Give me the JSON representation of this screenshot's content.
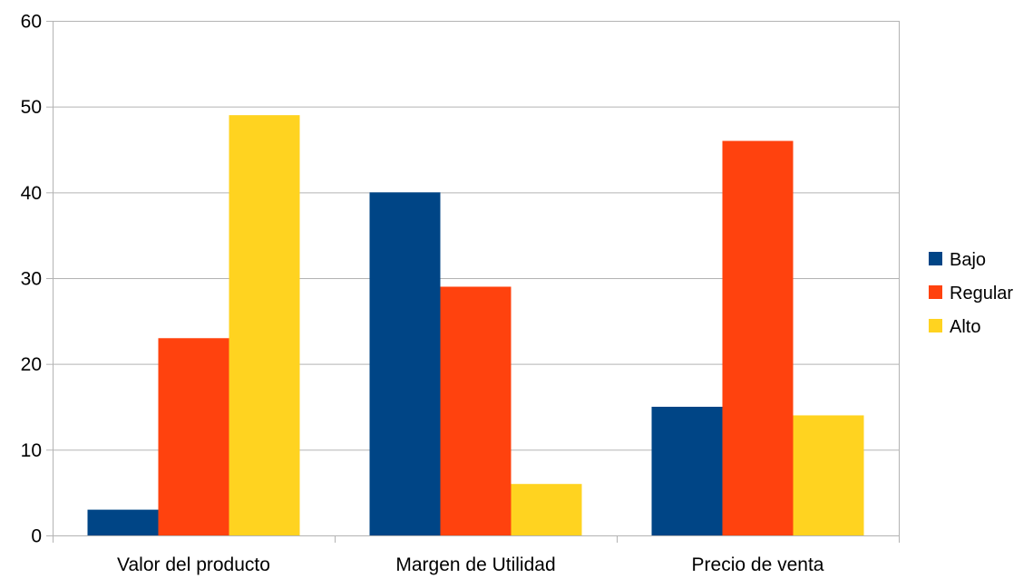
{
  "chart_data": {
    "type": "bar",
    "title": "",
    "xlabel": "",
    "ylabel": "",
    "categories": [
      "Valor del producto",
      "Margen de Utilidad",
      "Precio de venta"
    ],
    "series": [
      {
        "name": "Bajo",
        "color": "#004586",
        "values": [
          3,
          40,
          15
        ]
      },
      {
        "name": "Regular",
        "color": "#ff420e",
        "values": [
          23,
          29,
          46
        ]
      },
      {
        "name": "Alto",
        "color": "#ffd320",
        "values": [
          49,
          6,
          14
        ]
      }
    ],
    "ylim": [
      0,
      60
    ],
    "yticks": [
      "0",
      "10",
      "20",
      "30",
      "40",
      "50",
      "60"
    ],
    "grid": true,
    "legend": "right"
  }
}
